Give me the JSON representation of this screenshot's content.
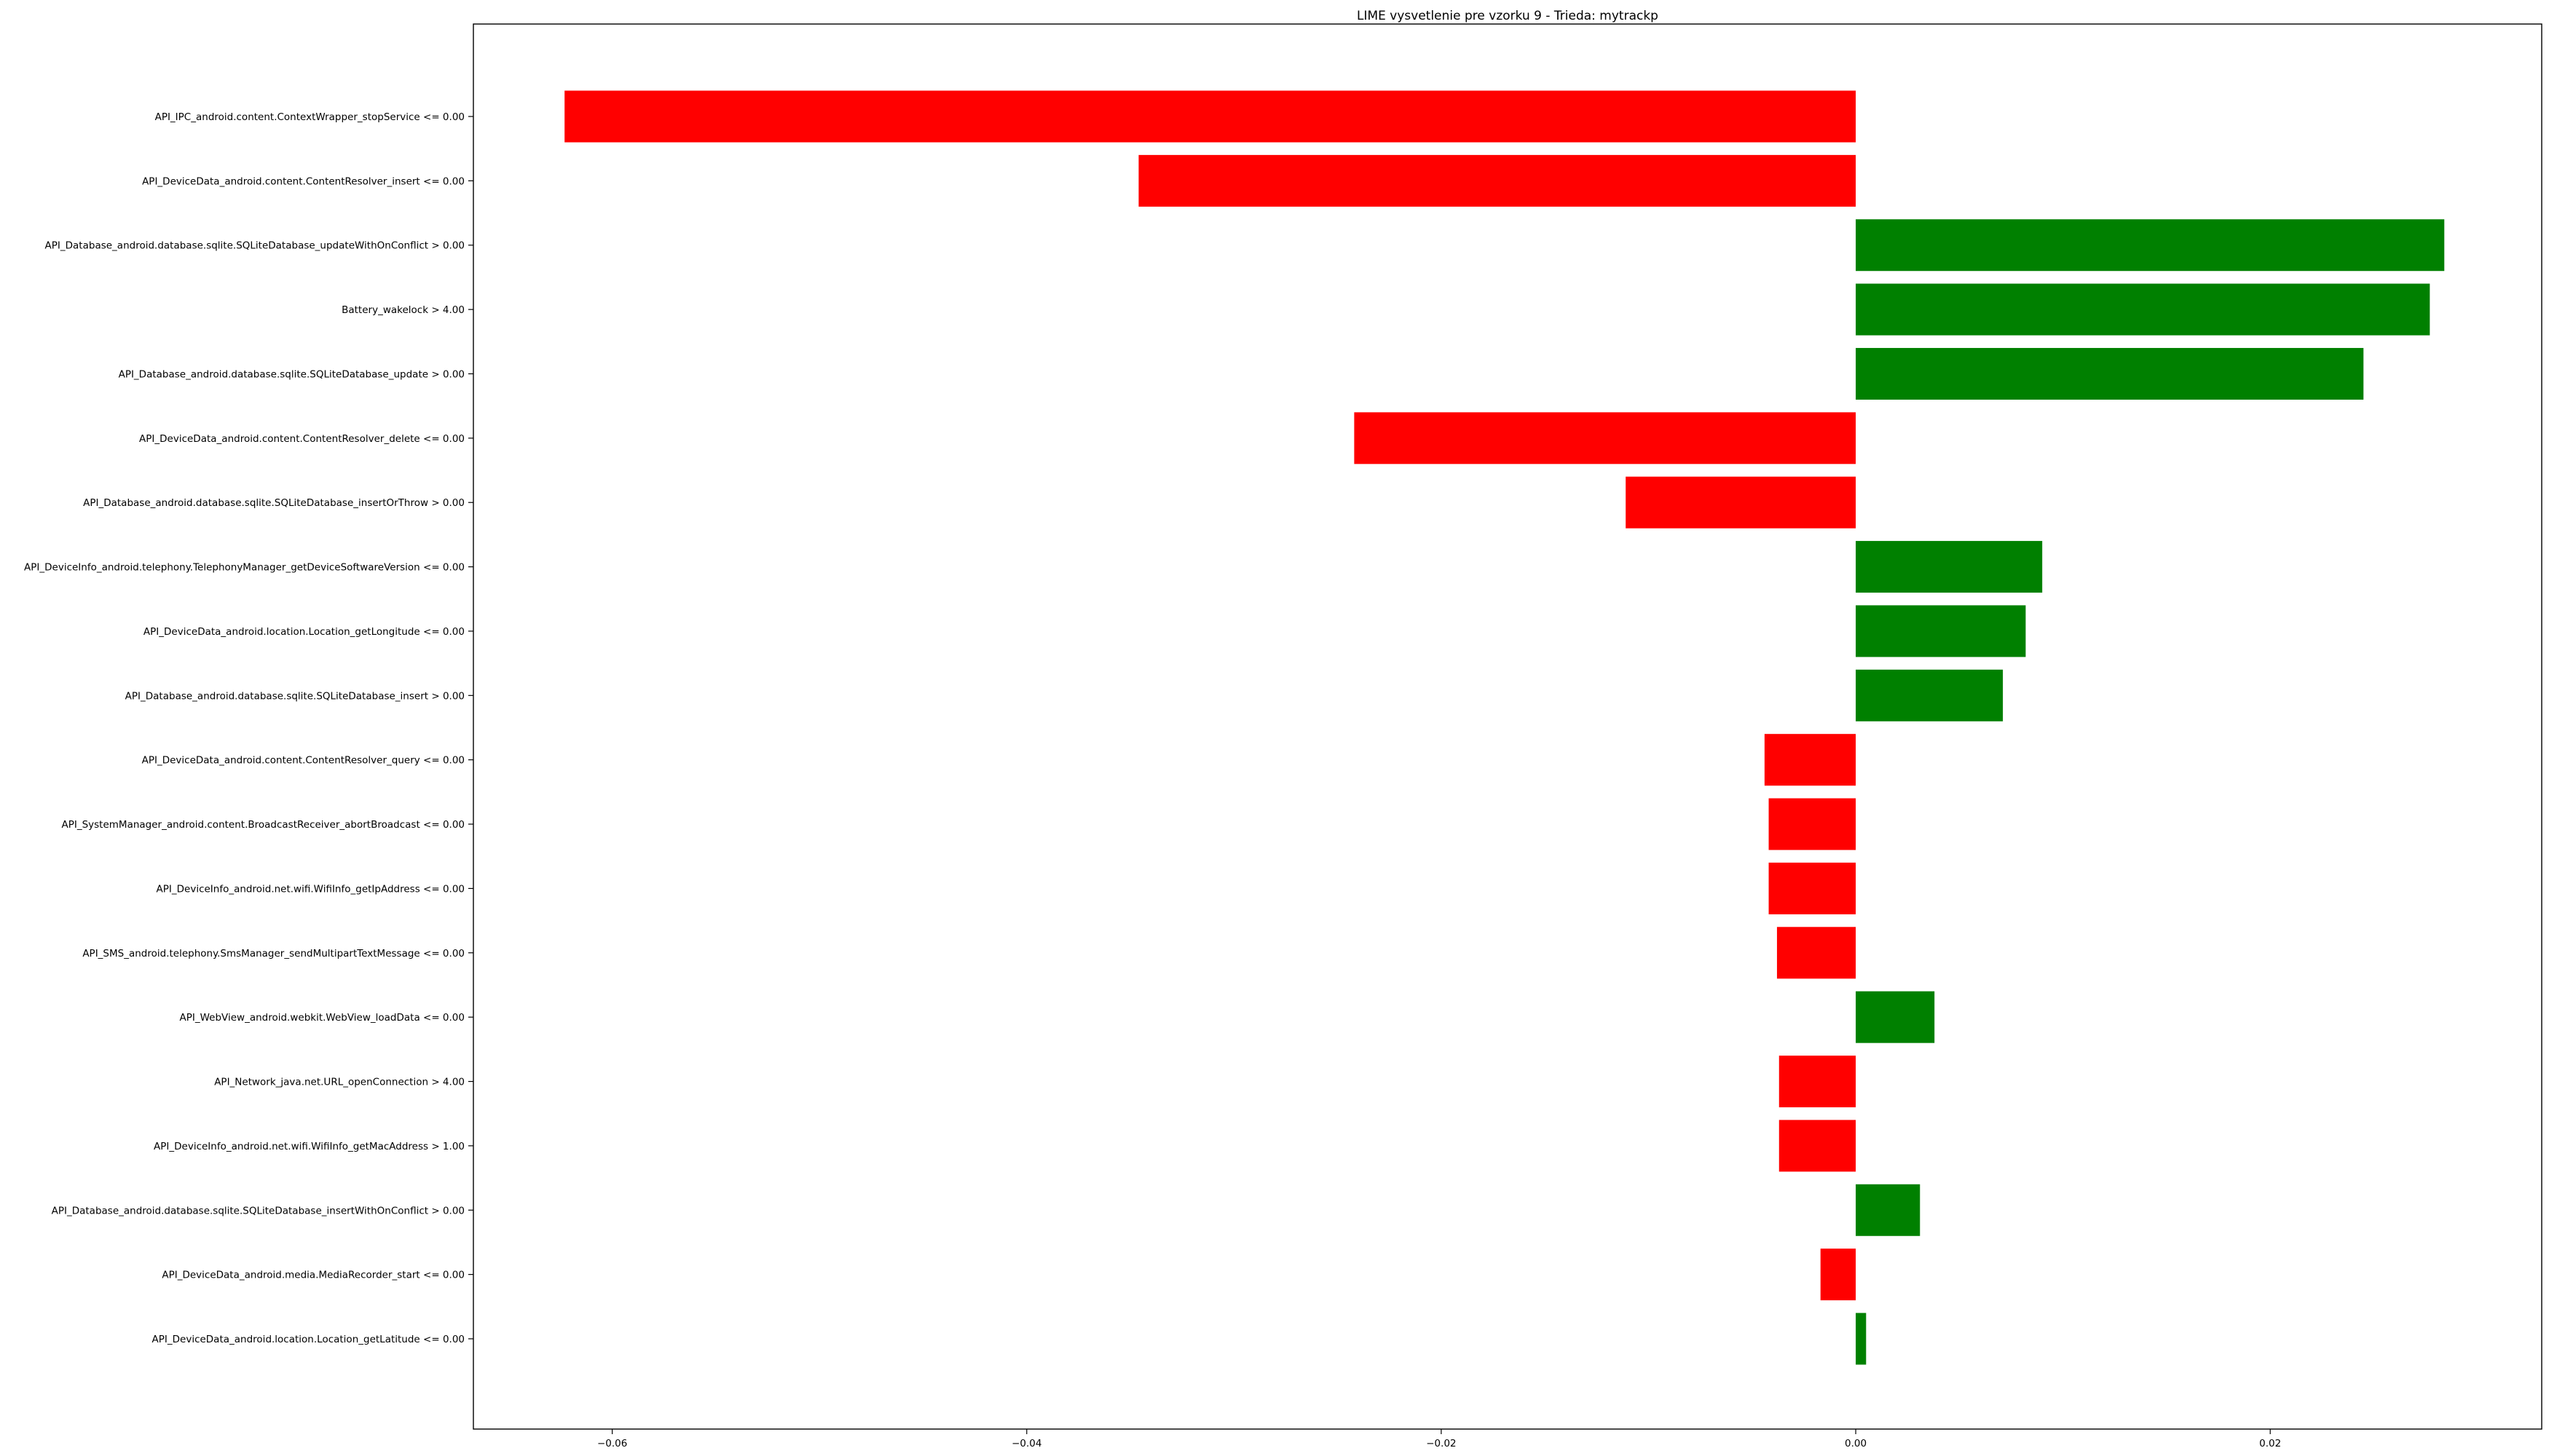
{
  "chart_data": {
    "type": "bar",
    "orientation": "horizontal",
    "title": "LIME vysvetlenie pre vzorku 9 - Trieda: mytrackp",
    "xlabel": "",
    "ylabel": "",
    "xlim": [
      -0.0667,
      0.0331
    ],
    "xticks": [
      -0.06,
      -0.04,
      -0.02,
      0.0,
      0.02
    ],
    "xtick_labels": [
      "−0.06",
      "−0.04",
      "−0.02",
      "0.00",
      "0.02"
    ],
    "grid": false,
    "legend": false,
    "colors": {
      "positive": "#008000",
      "negative": "#ff0000"
    },
    "categories": [
      "API_IPC_android.content.ContextWrapper_stopService <= 0.00",
      "API_DeviceData_android.content.ContentResolver_insert <= 0.00",
      "API_Database_android.database.sqlite.SQLiteDatabase_updateWithOnConflict > 0.00",
      "Battery_wakelock > 4.00",
      "API_Database_android.database.sqlite.SQLiteDatabase_update > 0.00",
      "API_DeviceData_android.content.ContentResolver_delete <= 0.00",
      "API_Database_android.database.sqlite.SQLiteDatabase_insertOrThrow > 0.00",
      "API_DeviceInfo_android.telephony.TelephonyManager_getDeviceSoftwareVersion <= 0.00",
      "API_DeviceData_android.location.Location_getLongitude <= 0.00",
      "API_Database_android.database.sqlite.SQLiteDatabase_insert > 0.00",
      "API_DeviceData_android.content.ContentResolver_query <= 0.00",
      "API_SystemManager_android.content.BroadcastReceiver_abortBroadcast <= 0.00",
      "API_DeviceInfo_android.net.wifi.WifiInfo_getIpAddress <= 0.00",
      "API_SMS_android.telephony.SmsManager_sendMultipartTextMessage <= 0.00",
      "API_WebView_android.webkit.WebView_loadData <= 0.00",
      "API_Network_java.net.URL_openConnection > 4.00",
      "API_DeviceInfo_android.net.wifi.WifiInfo_getMacAddress > 1.00",
      "API_Database_android.database.sqlite.SQLiteDatabase_insertWithOnConflict > 0.00",
      "API_DeviceData_android.media.MediaRecorder_start <= 0.00",
      "API_DeviceData_android.location.Location_getLatitude <= 0.00"
    ],
    "values": [
      -0.0623,
      -0.0346,
      0.0284,
      0.0277,
      0.0245,
      -0.0242,
      -0.0111,
      0.009,
      0.0082,
      0.0071,
      -0.0044,
      -0.0042,
      -0.0042,
      -0.0038,
      0.0038,
      -0.0037,
      -0.0037,
      0.0031,
      -0.0017,
      0.0005
    ]
  }
}
